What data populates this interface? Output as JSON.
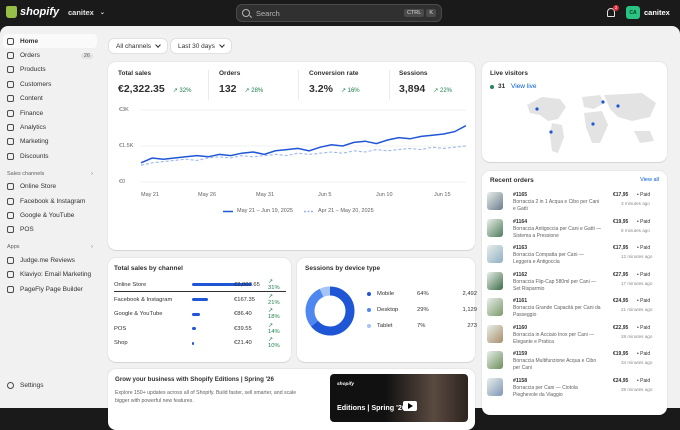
{
  "topbar": {
    "brand": "shopify",
    "store": "canitex",
    "search_placeholder": "Search",
    "shortcut_keys": [
      "CTRL",
      "K"
    ],
    "notification_count": "2",
    "user_name": "canitex",
    "user_initials": "CA"
  },
  "sidebar": {
    "items": [
      {
        "label": "Home",
        "icon": "home-icon"
      },
      {
        "label": "Orders",
        "icon": "orders-icon",
        "badge": "26"
      },
      {
        "label": "Products",
        "icon": "products-icon"
      },
      {
        "label": "Customers",
        "icon": "customers-icon"
      },
      {
        "label": "Content",
        "icon": "content-icon"
      },
      {
        "label": "Finance",
        "icon": "finance-icon"
      },
      {
        "label": "Analytics",
        "icon": "analytics-icon"
      },
      {
        "label": "Marketing",
        "icon": "marketing-icon"
      },
      {
        "label": "Discounts",
        "icon": "discounts-icon"
      }
    ],
    "sales_channels_label": "Sales channels",
    "sales_channels": [
      "Online Store",
      "Facebook & Instagram",
      "Google & YouTube",
      "POS"
    ],
    "apps_label": "Apps",
    "apps": [
      "Judge.me Reviews",
      "Klaviyo: Email Marketing",
      "PageFly Page Builder"
    ],
    "settings_label": "Settings"
  },
  "filters": {
    "channels": "All channels",
    "period": "Last 30 days"
  },
  "metrics": [
    {
      "label": "Total sales",
      "value": "€2,322.35",
      "change": "↗ 32%"
    },
    {
      "label": "Orders",
      "value": "132",
      "change": "↗ 28%"
    },
    {
      "label": "Conversion rate",
      "value": "3.2%",
      "change": "↗ 16%"
    },
    {
      "label": "Sessions",
      "value": "3,894",
      "change": "↗ 22%"
    }
  ],
  "chart_data": {
    "type": "line",
    "x_ticks": [
      "May 21",
      "May 26",
      "May 31",
      "Jun 5",
      "Jun 10",
      "Jun 15"
    ],
    "y_ticks": [
      "€3K",
      "€1.5K",
      "€0"
    ],
    "ylim": [
      0,
      3000
    ],
    "series": [
      {
        "name": "May 21 – Jun 19, 2025",
        "color": "#1f56d6",
        "values": [
          800,
          1000,
          950,
          1000,
          1050,
          1100,
          1050,
          1150,
          1100,
          1200,
          1250,
          1150,
          1300,
          1350,
          1400,
          1300,
          1450,
          1550,
          1500,
          1650,
          1700,
          1600,
          1750,
          1850,
          1800,
          1900,
          1950,
          2000,
          2100,
          2350
        ]
      },
      {
        "name": "Apr 21 – May 20, 2025",
        "color": "#9db7ee",
        "values": [
          700,
          800,
          850,
          900,
          950,
          900,
          1000,
          1050,
          1000,
          1100,
          1050,
          1100,
          1150,
          1100,
          1200,
          1150,
          1200,
          1250,
          1200,
          1300,
          1250,
          1350,
          1300,
          1350,
          1400,
          1350,
          1450,
          1400,
          1450,
          1500
        ]
      }
    ]
  },
  "live_visitors": {
    "title": "Live visitors",
    "count": "31",
    "link": "View live"
  },
  "sales_by_channel": {
    "title": "Total sales by channel",
    "rows": [
      {
        "name": "Online Store",
        "fraction": 1.0,
        "amount": "€2,007.65",
        "change": "↗ 31%"
      },
      {
        "name": "Facebook & Instagram",
        "fraction": 0.26,
        "amount": "€167.35",
        "change": "↗ 21%"
      },
      {
        "name": "Google & YouTube",
        "fraction": 0.13,
        "amount": "€86.40",
        "change": "↗ 18%"
      },
      {
        "name": "POS",
        "fraction": 0.07,
        "amount": "€39.55",
        "change": "↗ 14%"
      },
      {
        "name": "Shop",
        "fraction": 0.04,
        "amount": "€21.40",
        "change": "↗ 10%"
      }
    ]
  },
  "sessions_by_device": {
    "title": "Sessions by device type",
    "rows": [
      {
        "name": "Mobile",
        "pct": "64%",
        "count": "2,492",
        "color": "#1f56d6",
        "fraction": 0.64
      },
      {
        "name": "Desktop",
        "pct": "29%",
        "count": "1,129",
        "color": "#4f87f0",
        "fraction": 0.29
      },
      {
        "name": "Tablet",
        "pct": "7%",
        "count": "273",
        "color": "#a7c4f7",
        "fraction": 0.07
      }
    ]
  },
  "promo": {
    "title": "Grow your business with Shopify Editions | Spring '26",
    "text": "Explore 150+ updates across all of Shopify. Build faster, sell smarter, and scale bigger with powerful new features.",
    "video_brand": "shopify",
    "video_title": "Editions | Spring '26"
  },
  "recent_orders": {
    "title": "Recent orders",
    "link": "View all",
    "rows": [
      {
        "id": "#1165",
        "name": "Borraccia 2 in 1 Acqua e Cibo per Cani e Gatti",
        "price": "€17,95",
        "status": "• Paid",
        "time": "3 minutes ago",
        "color": "#6a7b8c"
      },
      {
        "id": "#1164",
        "name": "Borraccia Antigoccia per Cani e Gatti — Sistema a Pressione",
        "price": "€19,95",
        "status": "• Paid",
        "time": "8 minutes ago",
        "color": "#4f7c5a"
      },
      {
        "id": "#1163",
        "name": "Borraccia Compatta per Cani — Leggera e Antigoccia",
        "price": "€17,95",
        "status": "• Paid",
        "time": "12 minutes ago",
        "color": "#8fb0c4"
      },
      {
        "id": "#1162",
        "name": "Borraccia Flip-Cap 580ml per Cani — Set Risparmio",
        "price": "€27,95",
        "status": "• Paid",
        "time": "17 minutes ago",
        "color": "#3d6b48"
      },
      {
        "id": "#1161",
        "name": "Borraccia Grande Capacità per Cani da Passeggio",
        "price": "€24,95",
        "status": "• Paid",
        "time": "21 minutes ago",
        "color": "#7a9a6a"
      },
      {
        "id": "#1160",
        "name": "Borraccia in Acciaio Inox per Cani — Elegante e Pratica",
        "price": "€22,95",
        "status": "• Paid",
        "time": "28 minutes ago",
        "color": "#a98e6a"
      },
      {
        "id": "#1159",
        "name": "Borraccia Multifunzione Acqua e Cibo per Cani",
        "price": "€19,95",
        "status": "• Paid",
        "time": "34 minutes ago",
        "color": "#6b8e5a"
      },
      {
        "id": "#1158",
        "name": "Borraccia per Cani — Ciotola Pieghevole da Viaggio",
        "price": "€24,95",
        "status": "• Paid",
        "time": "39 minutes ago",
        "color": "#7e96b8"
      }
    ]
  }
}
